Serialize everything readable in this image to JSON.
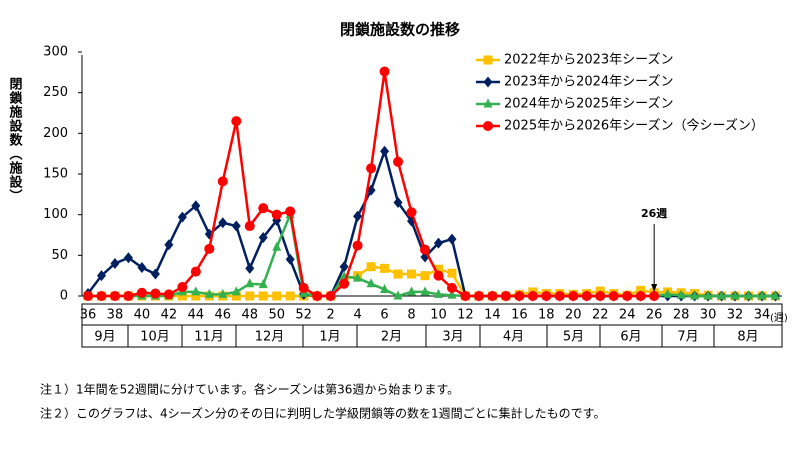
{
  "chart_data": {
    "type": "line",
    "title": "閉鎖施設数の推移",
    "y_label": "閉鎖施設数（施設）",
    "x_label": "(週)",
    "categories": [
      36,
      null,
      38,
      null,
      40,
      null,
      42,
      null,
      44,
      null,
      46,
      null,
      48,
      null,
      50,
      null,
      52,
      null,
      2,
      null,
      4,
      null,
      6,
      null,
      8,
      null,
      10,
      null,
      12,
      null,
      14,
      null,
      16,
      null,
      18,
      null,
      20,
      null,
      22,
      null,
      24,
      null,
      26,
      null,
      28,
      null,
      30,
      null,
      32,
      null,
      34,
      null
    ],
    "months": [
      "9月",
      "10月",
      "11月",
      "12月",
      "1月",
      "2月",
      "3月",
      "4月",
      "5月",
      "6月",
      "7月",
      "8月"
    ],
    "ylim": [
      0,
      300
    ],
    "yticks": [
      0,
      50,
      100,
      150,
      200,
      250,
      300
    ],
    "annotation": "26週",
    "series": [
      {
        "name": "2022年から2023年シーズン",
        "color": "#ffc000",
        "marker": "square",
        "values": [
          0,
          0,
          0,
          0,
          0,
          0,
          0,
          0,
          0,
          0,
          0,
          0,
          0,
          0,
          0,
          0,
          0,
          0,
          0,
          20,
          25,
          36,
          34,
          27,
          27,
          25,
          33,
          28,
          0,
          0,
          0,
          0,
          2,
          5,
          3,
          3,
          2,
          3,
          6,
          3,
          1,
          7,
          4,
          5,
          4,
          3,
          1,
          0,
          0,
          0,
          0,
          0
        ]
      },
      {
        "name": "2023年から2024年シーズン",
        "color": "#002060",
        "marker": "diamond",
        "values": [
          3,
          25,
          40,
          47,
          35,
          27,
          63,
          97,
          111,
          76,
          90,
          86,
          34,
          72,
          93,
          45,
          2,
          0,
          0,
          36,
          98,
          130,
          178,
          115,
          92,
          48,
          65,
          70,
          0,
          0,
          0,
          0,
          0,
          0,
          0,
          0,
          0,
          0,
          0,
          0,
          0,
          0,
          0,
          0,
          0,
          0,
          0,
          0,
          0,
          0,
          0,
          0
        ]
      },
      {
        "name": "2024年から2025年シーズン",
        "color": "#33b050",
        "marker": "triangle",
        "values": [
          0,
          0,
          0,
          0,
          0,
          0,
          0,
          5,
          5,
          2,
          2,
          5,
          15,
          14,
          60,
          100,
          3,
          0,
          0,
          24,
          22,
          15,
          8,
          0,
          5,
          5,
          2,
          1,
          0,
          0,
          0,
          0,
          0,
          0,
          0,
          0,
          0,
          0,
          0,
          0,
          0,
          0,
          0,
          2,
          1,
          0,
          0,
          0,
          0,
          0,
          0,
          0
        ]
      },
      {
        "name": "2025年から2026年シーズン（今シーズン）",
        "color": "#ff0000",
        "marker": "circle",
        "values": [
          0,
          0,
          0,
          0,
          4,
          3,
          2,
          11,
          30,
          58,
          141,
          215,
          86,
          108,
          100,
          104,
          10,
          0,
          0,
          15,
          62,
          157,
          276,
          165,
          103,
          57,
          25,
          10,
          0,
          0,
          0,
          0,
          0,
          0,
          0,
          0,
          0,
          0,
          0,
          0,
          0,
          0,
          0,
          null,
          null,
          null,
          null,
          null,
          null,
          null,
          null,
          null
        ]
      }
    ]
  },
  "notes": [
    "注１）1年間を52週間に分けています。各シーズンは第36週から始まります。",
    "注２）このグラフは、4シーズン分のその日に判明した学級閉鎖等の数を1週間ごとに集計したものです。"
  ]
}
